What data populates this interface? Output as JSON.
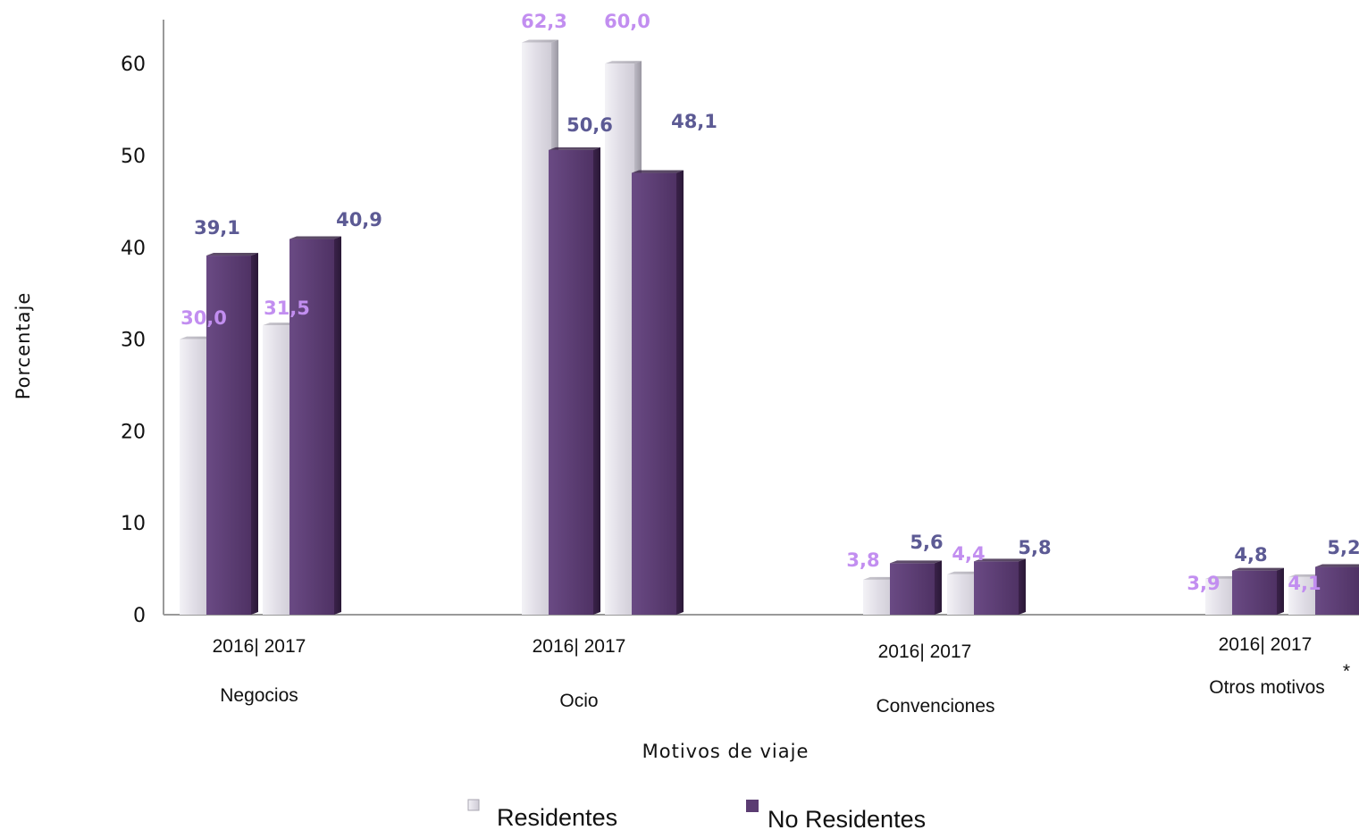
{
  "chart_data": {
    "type": "bar",
    "categories": [
      "Negocios",
      "Ocio",
      "Convenciones",
      "Otros motivos"
    ],
    "category_years": [
      "2016|  2017",
      "2016|  2017",
      "2016|  2017",
      "2016|  2017"
    ],
    "years": [
      "2016",
      "2017"
    ],
    "series": [
      {
        "name": "Residentes",
        "color": "#e6e4ea",
        "label_color": "#c28ef0",
        "values": [
          [
            30.0,
            31.5
          ],
          [
            62.3,
            60.0
          ],
          [
            3.8,
            4.4
          ],
          [
            3.9,
            4.1
          ]
        ],
        "labels": [
          [
            "30,0",
            "31,5"
          ],
          [
            "62,3",
            "60,0"
          ],
          [
            "3,8",
            "4,4"
          ],
          [
            "3,9",
            "4,1"
          ]
        ]
      },
      {
        "name": "No Residentes",
        "color": "#5b3c72",
        "label_color": "#5c5a94",
        "values": [
          [
            39.1,
            40.9
          ],
          [
            50.6,
            48.1
          ],
          [
            5.6,
            5.8
          ],
          [
            4.8,
            5.2
          ]
        ],
        "labels": [
          [
            "39,1",
            "40,9"
          ],
          [
            "50,6",
            "48,1"
          ],
          [
            "5,6",
            "5,8"
          ],
          [
            "4,8",
            "5,2"
          ]
        ]
      }
    ],
    "xlabel": "Motivos de viaje",
    "ylabel": "Porcentaje",
    "ylim": [
      0,
      65
    ],
    "yticks": [
      "0",
      "10",
      "20",
      "30",
      "40",
      "50",
      "60"
    ],
    "footnote_mark": "*",
    "legend_position": "bottom",
    "grid": false
  }
}
